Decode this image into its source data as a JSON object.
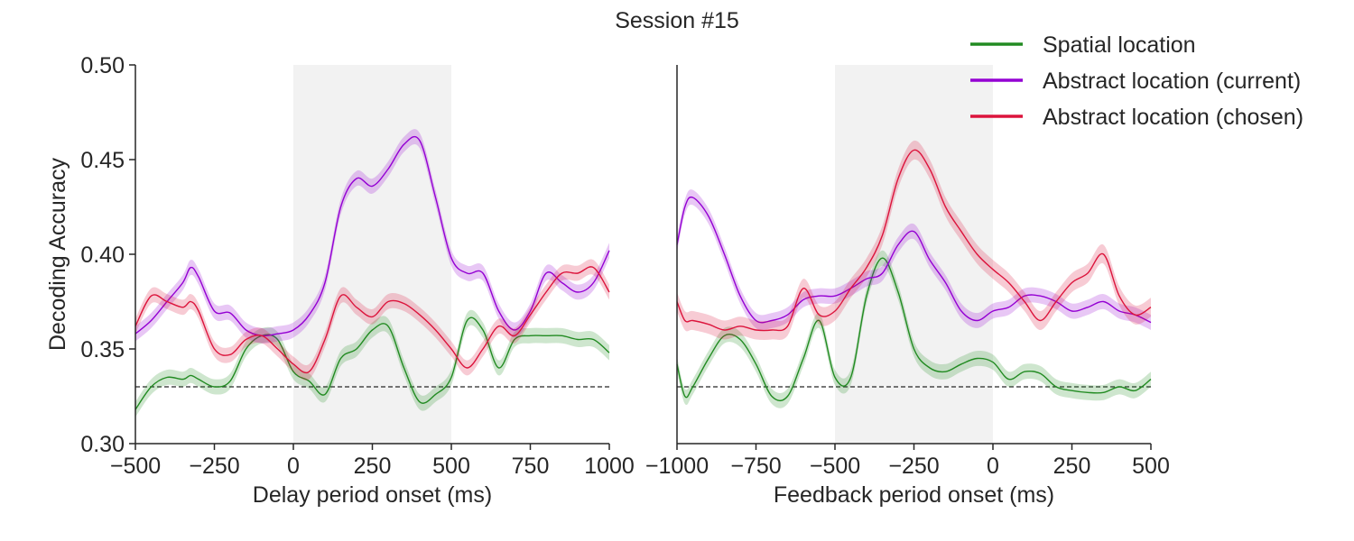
{
  "figure": {
    "title": "Session #15"
  },
  "legend": {
    "placement": "top-right",
    "items": [
      {
        "label": "Spatial location",
        "color": "#228B22"
      },
      {
        "label": "Abstract location (current)",
        "color": "#9400D3"
      },
      {
        "label": "Abstract location (chosen)",
        "color": "#DC143C"
      }
    ]
  },
  "chart_data": [
    {
      "type": "line",
      "title": "",
      "xlabel": "Delay period onset (ms)",
      "ylabel": "Decoding Accuracy",
      "xlim": [
        -500,
        1000
      ],
      "ylim": [
        0.3,
        0.5
      ],
      "xticks": [
        -500,
        -250,
        0,
        250,
        500,
        750,
        1000
      ],
      "xtick_labels": [
        "−500",
        "−250",
        "0",
        "250",
        "500",
        "750",
        "1000"
      ],
      "yticks": [
        0.3,
        0.35,
        0.4,
        0.45,
        0.5
      ],
      "ytick_labels": [
        "0.30",
        "0.35",
        "0.40",
        "0.45",
        "0.50"
      ],
      "shaded_interval": [
        0,
        500
      ],
      "chance_level": 0.33,
      "grid": false,
      "x": [
        -500,
        -450,
        -400,
        -350,
        -325,
        -300,
        -250,
        -200,
        -150,
        -100,
        -50,
        0,
        50,
        100,
        150,
        200,
        250,
        300,
        350,
        400,
        450,
        500,
        550,
        600,
        650,
        700,
        750,
        800,
        850,
        900,
        950,
        1000
      ],
      "series": [
        {
          "name": "Spatial location",
          "band": 0.004,
          "values": [
            0.318,
            0.33,
            0.335,
            0.334,
            0.336,
            0.334,
            0.33,
            0.333,
            0.35,
            0.357,
            0.355,
            0.338,
            0.333,
            0.326,
            0.345,
            0.35,
            0.36,
            0.362,
            0.34,
            0.322,
            0.326,
            0.335,
            0.365,
            0.36,
            0.34,
            0.355,
            0.357,
            0.357,
            0.357,
            0.355,
            0.355,
            0.348
          ]
        },
        {
          "name": "Abstract location (current)",
          "band": 0.004,
          "values": [
            0.358,
            0.365,
            0.375,
            0.385,
            0.393,
            0.388,
            0.37,
            0.369,
            0.36,
            0.357,
            0.358,
            0.36,
            0.368,
            0.385,
            0.425,
            0.44,
            0.436,
            0.445,
            0.458,
            0.46,
            0.43,
            0.398,
            0.39,
            0.39,
            0.37,
            0.36,
            0.37,
            0.39,
            0.385,
            0.38,
            0.385,
            0.402
          ]
        },
        {
          "name": "Abstract location (chosen)",
          "band": 0.004,
          "values": [
            0.362,
            0.378,
            0.375,
            0.372,
            0.375,
            0.37,
            0.35,
            0.347,
            0.355,
            0.357,
            0.35,
            0.342,
            0.338,
            0.355,
            0.378,
            0.372,
            0.367,
            0.375,
            0.374,
            0.368,
            0.36,
            0.35,
            0.34,
            0.35,
            0.362,
            0.357,
            0.368,
            0.38,
            0.39,
            0.39,
            0.393,
            0.38
          ]
        }
      ]
    },
    {
      "type": "line",
      "title": "",
      "xlabel": "Feedback period onset (ms)",
      "ylabel": "",
      "xlim": [
        -1000,
        500
      ],
      "ylim": [
        0.3,
        0.5
      ],
      "xticks": [
        -1000,
        -750,
        -500,
        -250,
        0,
        250,
        500
      ],
      "xtick_labels": [
        "−1000",
        "−750",
        "−500",
        "−250",
        "0",
        "250",
        "500"
      ],
      "shaded_interval": [
        -500,
        0
      ],
      "chance_level": 0.33,
      "grid": false,
      "x": [
        -1000,
        -975,
        -950,
        -900,
        -850,
        -800,
        -750,
        -700,
        -650,
        -600,
        -550,
        -500,
        -450,
        -400,
        -350,
        -300,
        -250,
        -200,
        -150,
        -100,
        -50,
        0,
        50,
        100,
        150,
        200,
        250,
        300,
        350,
        400,
        450,
        500
      ],
      "series": [
        {
          "name": "Spatial location",
          "band": 0.004,
          "values": [
            0.342,
            0.325,
            0.33,
            0.345,
            0.357,
            0.355,
            0.342,
            0.325,
            0.325,
            0.345,
            0.365,
            0.335,
            0.335,
            0.378,
            0.398,
            0.38,
            0.35,
            0.34,
            0.338,
            0.342,
            0.345,
            0.343,
            0.334,
            0.338,
            0.337,
            0.33,
            0.328,
            0.327,
            0.327,
            0.33,
            0.328,
            0.334
          ]
        },
        {
          "name": "Abstract location (current)",
          "band": 0.004,
          "values": [
            0.405,
            0.425,
            0.43,
            0.42,
            0.4,
            0.378,
            0.365,
            0.365,
            0.368,
            0.376,
            0.378,
            0.378,
            0.382,
            0.387,
            0.39,
            0.405,
            0.412,
            0.397,
            0.385,
            0.37,
            0.365,
            0.37,
            0.372,
            0.378,
            0.378,
            0.375,
            0.37,
            0.372,
            0.375,
            0.37,
            0.368,
            0.364
          ]
        },
        {
          "name": "Abstract location (chosen)",
          "band": 0.005,
          "values": [
            0.375,
            0.365,
            0.365,
            0.363,
            0.36,
            0.362,
            0.36,
            0.36,
            0.362,
            0.382,
            0.368,
            0.37,
            0.382,
            0.393,
            0.41,
            0.44,
            0.455,
            0.445,
            0.425,
            0.412,
            0.4,
            0.392,
            0.385,
            0.375,
            0.365,
            0.375,
            0.385,
            0.39,
            0.4,
            0.378,
            0.368,
            0.372
          ]
        }
      ]
    }
  ]
}
